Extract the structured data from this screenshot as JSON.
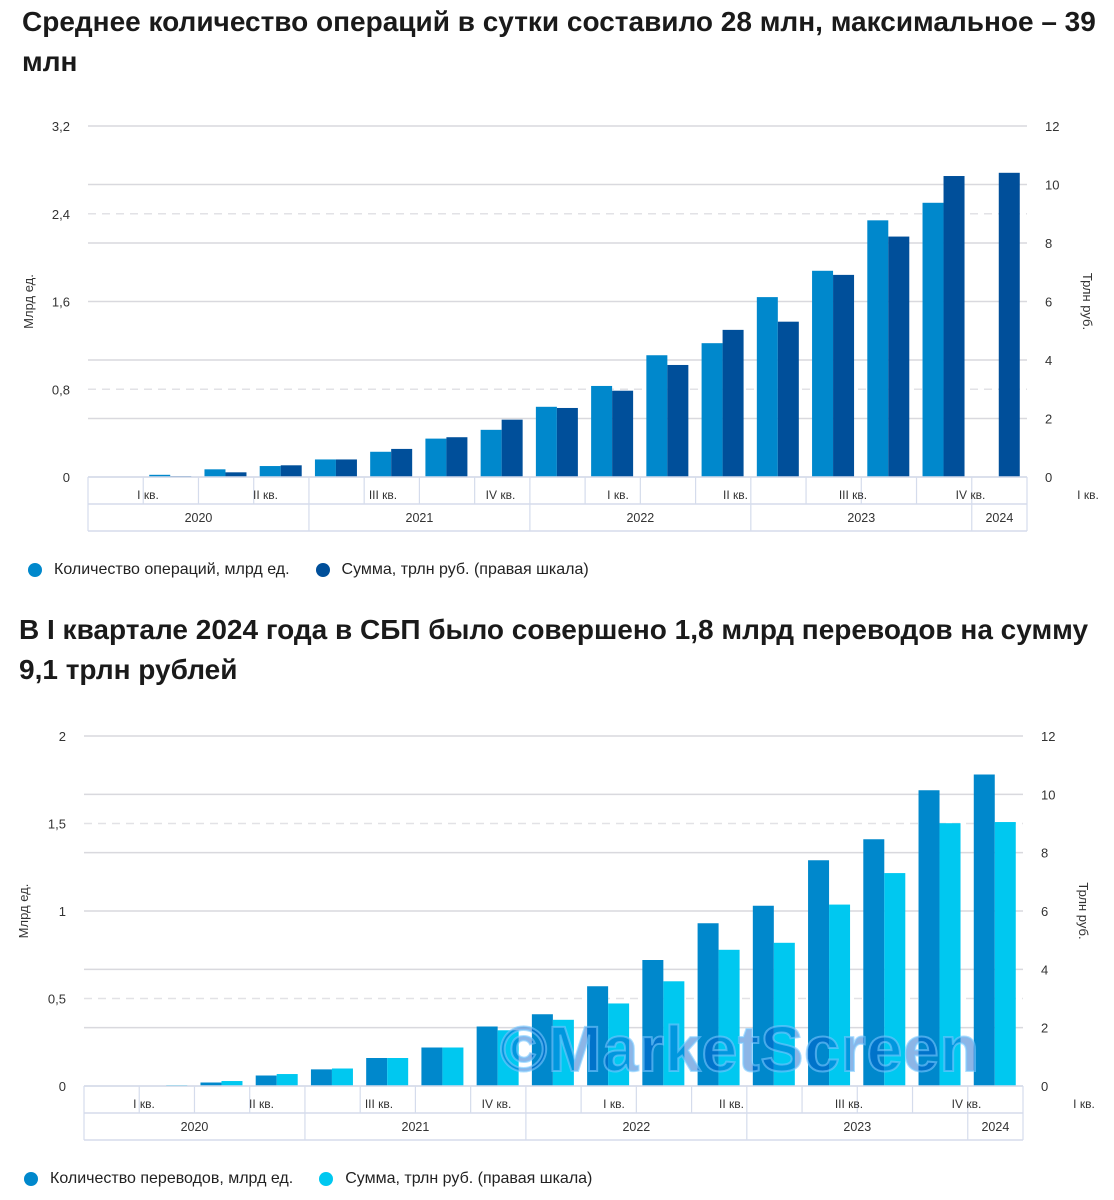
{
  "charts_titles": [
    "Среднее количество операций в сутки составило 28 млн, максимальное – 39 млн",
    "В I квартале 2024 года в СБП было совершено 1,8 млрд переводов на сумму 9,1 трлн рублей"
  ],
  "watermark": "©MarketScreen",
  "chart_data": [
    {
      "type": "bar",
      "title": "Среднее количество операций в сутки составило 28 млн, максимальное – 39 млн",
      "categories": [
        "I кв. 2020",
        "II кв. 2020",
        "III кв. 2020",
        "IV кв. 2020",
        "I кв. 2021",
        "II кв. 2021",
        "III кв. 2021",
        "IV кв. 2021",
        "I кв. 2022",
        "II кв. 2022",
        "III кв. 2022",
        "IV кв. 2022",
        "I кв. 2023",
        "II кв. 2023",
        "III кв. 2023",
        "IV кв. 2023",
        "I кв. 2024"
      ],
      "quarter_labels": [
        "I кв.",
        "II кв.",
        "III кв.",
        "IV кв.",
        "I кв.",
        "II кв.",
        "III кв.",
        "IV кв.",
        "I кв."
      ],
      "years": [
        {
          "label": "2020",
          "quarters": 4
        },
        {
          "label": "2021",
          "quarters": 4
        },
        {
          "label": "2022",
          "quarters": 4
        },
        {
          "label": "2023",
          "quarters": 4
        },
        {
          "label": "2024",
          "quarters": 1
        }
      ],
      "ylabel": "Млрд ед.",
      "ylabel_right": "Трлн руб.",
      "ylim": [
        0,
        3.2
      ],
      "yticks": [
        "0",
        "0,8",
        "1,6",
        "2,4",
        "3,2"
      ],
      "ylim_right": [
        0,
        12
      ],
      "yticks_right": [
        "0",
        "2",
        "4",
        "6",
        "8",
        "10",
        "12"
      ],
      "grid": true,
      "legend_position": "bottom-left",
      "series": [
        {
          "name": "Количество операций, млрд ед.",
          "axis": "left",
          "color": "#0088cc",
          "values": [
            null,
            0.02,
            0.07,
            0.1,
            0.16,
            0.23,
            0.35,
            0.43,
            0.64,
            0.83,
            1.11,
            1.22,
            1.64,
            1.88,
            2.34,
            2.5,
            null
          ]
        },
        {
          "name": "Сумма, трлн руб. (правая шкала)",
          "axis": "right",
          "color": "#004f9a",
          "values": [
            null,
            0.03,
            0.16,
            0.4,
            0.6,
            0.96,
            1.36,
            1.96,
            2.36,
            2.95,
            3.83,
            5.03,
            5.31,
            6.91,
            8.22,
            10.29,
            10.4
          ]
        }
      ]
    },
    {
      "type": "bar",
      "title": "В I квартале 2024 года в СБП было совершено 1,8 млрд переводов на сумму 9,1 трлн рублей",
      "categories": [
        "I кв. 2020",
        "II кв. 2020",
        "III кв. 2020",
        "IV кв. 2020",
        "I кв. 2021",
        "II кв. 2021",
        "III кв. 2021",
        "IV кв. 2021",
        "I кв. 2022",
        "II кв. 2022",
        "III кв. 2022",
        "IV кв. 2022",
        "I кв. 2023",
        "II кв. 2023",
        "III кв. 2023",
        "IV кв. 2023",
        "I кв. 2024"
      ],
      "quarter_labels": [
        "I кв.",
        "II кв.",
        "III кв.",
        "IV кв.",
        "I кв.",
        "II кв.",
        "III кв.",
        "IV кв.",
        "I кв."
      ],
      "years": [
        {
          "label": "2020",
          "quarters": 4
        },
        {
          "label": "2021",
          "quarters": 4
        },
        {
          "label": "2022",
          "quarters": 4
        },
        {
          "label": "2023",
          "quarters": 4
        },
        {
          "label": "2024",
          "quarters": 1
        }
      ],
      "ylabel": "Млрд ед.",
      "ylabel_right": "Трлн руб.",
      "ylim": [
        0,
        2
      ],
      "yticks": [
        "0",
        "0,5",
        "1",
        "1,5",
        "2"
      ],
      "ylim_right": [
        0,
        12
      ],
      "yticks_right": [
        "0",
        "2",
        "4",
        "6",
        "8",
        "10",
        "12"
      ],
      "grid": true,
      "legend_position": "bottom-left",
      "series": [
        {
          "name": "Количество переводов, млрд ед.",
          "axis": "left",
          "color": "#0088cc",
          "values": [
            null,
            0,
            0.02,
            0.06,
            0.095,
            0.16,
            0.22,
            0.34,
            0.41,
            0.57,
            0.72,
            0.93,
            1.03,
            1.29,
            1.41,
            1.69,
            1.78
          ]
        },
        {
          "name": "Сумма, трлн руб. (правая шкала)",
          "axis": "right",
          "color": "#00c8f0",
          "values": [
            null,
            0.03,
            0.17,
            0.41,
            0.6,
            0.96,
            1.32,
            1.91,
            2.27,
            2.83,
            3.59,
            4.67,
            4.91,
            6.22,
            7.3,
            9.01,
            9.05
          ]
        }
      ]
    }
  ]
}
